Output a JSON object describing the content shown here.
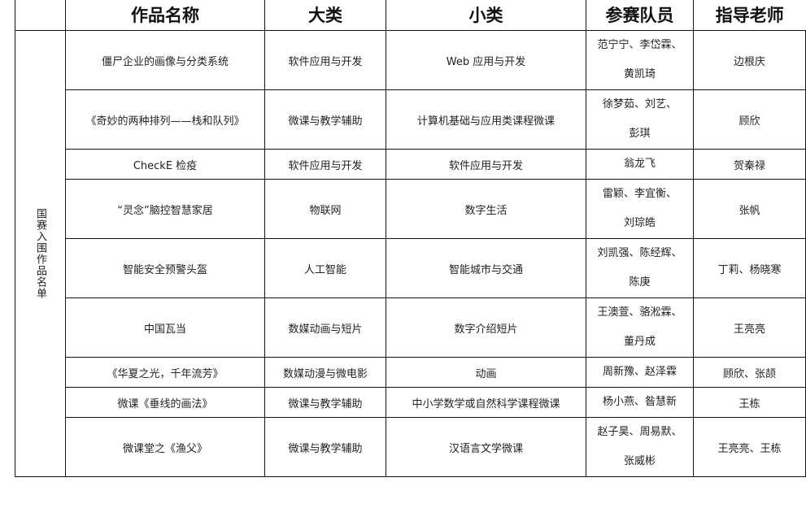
{
  "headers": [
    "作品名称",
    "大类",
    "小类",
    "参赛队员",
    "指导老师"
  ],
  "side_label": "国赛入围作品名单",
  "rows": [
    {
      "name": "僵尸企业的画像与分类系统",
      "major": "软件应用与开发",
      "minor": "Web 应用与开发",
      "members": [
        "范宁宁、李岱霖、",
        "黄凯琦"
      ],
      "advisor": "边根庆"
    },
    {
      "name": "《奇妙的两种排列——栈和队列》",
      "major": "微课与教学辅助",
      "minor": "计算机基础与应用类课程微课",
      "members": [
        "徐梦茹、刘艺、",
        "彭琪"
      ],
      "advisor": "顾欣"
    },
    {
      "name": "CheckE 检疫",
      "major": "软件应用与开发",
      "minor": "软件应用与开发",
      "members": [
        "翁龙飞"
      ],
      "advisor": "贺秦禄"
    },
    {
      "name": "“灵念”脑控智慧家居",
      "major": "物联网",
      "minor": "数字生活",
      "members": [
        "雷颖、李宜衡、",
        "刘琮皓"
      ],
      "advisor": "张帆"
    },
    {
      "name": "智能安全预警头盔",
      "major": "人工智能",
      "minor": "智能城市与交通",
      "members": [
        "刘凯强、陈经辉、",
        "陈庚"
      ],
      "advisor": "丁莉、杨晓寒"
    },
    {
      "name": "中国瓦当",
      "major": "数媒动画与短片",
      "minor": "数字介绍短片",
      "members": [
        "王澳萱、骆淞霖、",
        "董丹成"
      ],
      "advisor": "王亮亮"
    },
    {
      "name": "《华夏之光，千年流芳》",
      "major": "数媒动漫与微电影",
      "minor": "动画",
      "members": [
        "周新豫、赵泽霖"
      ],
      "advisor": "顾欣、张颉"
    },
    {
      "name": "微课《垂线的画法》",
      "major": "微课与教学辅助",
      "minor": "中小学数学或自然科学课程微课",
      "members": [
        "杨小燕、昝慧新"
      ],
      "advisor": "王栋"
    },
    {
      "name": "微课堂之《渔父》",
      "major": "微课与教学辅助",
      "minor": "汉语言文学微课",
      "members": [
        "赵子昊、周易默、",
        "张威彬"
      ],
      "advisor": "王亮亮、王栋"
    }
  ]
}
